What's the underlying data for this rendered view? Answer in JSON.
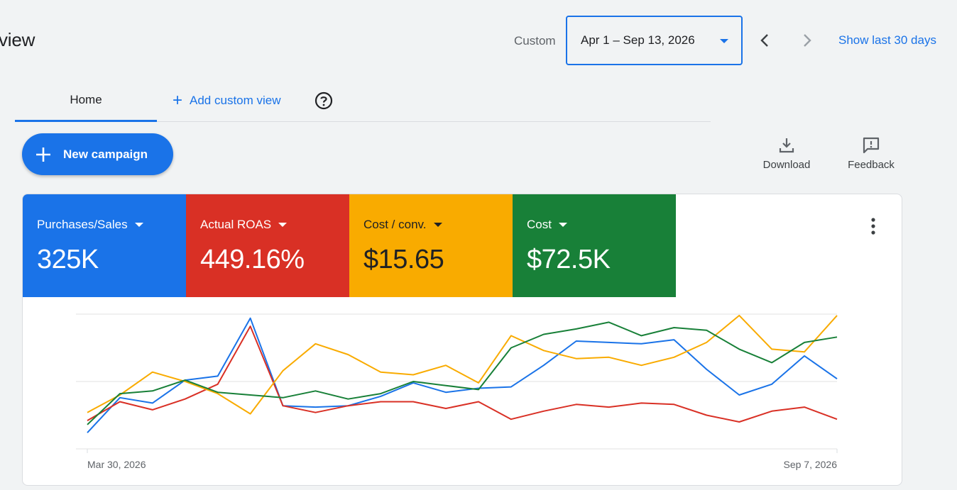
{
  "header": {
    "title": "view",
    "date_label": "Custom",
    "date_range": "Apr 1 – Sep 13, 2026",
    "show_last": "Show last 30 days"
  },
  "tabs": {
    "home": "Home",
    "add_custom": "Add custom view"
  },
  "actions": {
    "new_campaign": "New campaign",
    "download": "Download",
    "feedback": "Feedback"
  },
  "colors": {
    "blue": "#1a73e8",
    "red": "#d93025",
    "yellow": "#f9ab00",
    "green": "#188038"
  },
  "metrics": [
    {
      "label": "Purchases/Sales",
      "value": "325K",
      "color": "#1a73e8"
    },
    {
      "label": "Actual ROAS",
      "value": "449.16%",
      "color": "#d93025"
    },
    {
      "label": "Cost / conv.",
      "value": "$15.65",
      "color": "#f9ab00"
    },
    {
      "label": "Cost",
      "value": "$72.5K",
      "color": "#188038"
    }
  ],
  "chart_data": {
    "type": "line",
    "x_start_label": "Mar 30, 2026",
    "x_end_label": "Sep 7, 2026",
    "points": 24,
    "y_range": [
      0,
      100
    ],
    "grid": true,
    "series": [
      {
        "color": "#1a73e8",
        "values": [
          12,
          38,
          34,
          51,
          54,
          97,
          32,
          31,
          32,
          39,
          49,
          42,
          45,
          46,
          62,
          80,
          79,
          78,
          81,
          59,
          40,
          48,
          69,
          52
        ]
      },
      {
        "color": "#d93025",
        "values": [
          21,
          35,
          29,
          37,
          48,
          91,
          32,
          27,
          32,
          35,
          35,
          30,
          35,
          22,
          28,
          33,
          31,
          34,
          33,
          25,
          20,
          28,
          31,
          22
        ]
      },
      {
        "color": "#f9ab00",
        "values": [
          27,
          40,
          57,
          50,
          41,
          26,
          58,
          78,
          70,
          57,
          55,
          62,
          49,
          84,
          73,
          67,
          68,
          62,
          68,
          79,
          99,
          74,
          72,
          99
        ]
      },
      {
        "color": "#188038",
        "values": [
          18,
          41,
          43,
          51,
          42,
          40,
          38,
          43,
          37,
          41,
          50,
          47,
          44,
          75,
          85,
          89,
          94,
          84,
          90,
          88,
          74,
          64,
          79,
          83
        ]
      }
    ]
  }
}
